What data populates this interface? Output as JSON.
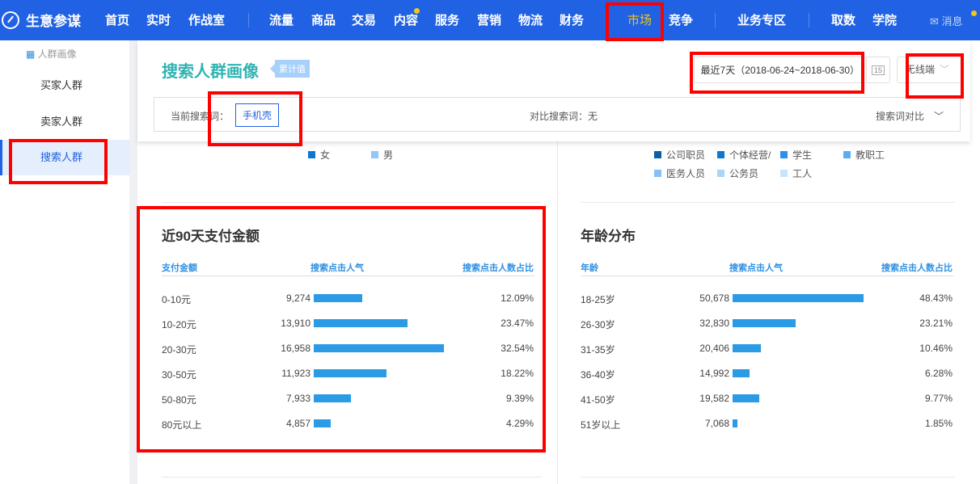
{
  "nav": {
    "brand": "生意参谋",
    "items": [
      "首页",
      "实时",
      "作战室",
      "流量",
      "商品",
      "交易",
      "内容",
      "服务",
      "营销",
      "物流",
      "财务",
      "市场",
      "竞争",
      "业务专区",
      "取数",
      "学院"
    ],
    "active": "市场",
    "message": "消息"
  },
  "sidebar": {
    "section": "人群画像",
    "items": [
      "买家人群",
      "卖家人群",
      "搜索人群"
    ],
    "active": "搜索人群"
  },
  "header": {
    "title": "搜索人群画像",
    "tag": "累计值",
    "date_range": "最近7天（2018-06-24~2018-06-30）",
    "calendar_day": "15",
    "device": "无线端"
  },
  "filter": {
    "current_label": "当前搜索词：",
    "keyword": "手机壳",
    "compare_label": "对比搜索词：无",
    "compare_button": "搜索词对比"
  },
  "gender_legend": [
    {
      "label": "女",
      "color": "#0a78d1"
    },
    {
      "label": "男",
      "color": "#8cc8f8"
    }
  ],
  "job_legend": [
    {
      "label": "公司职员",
      "color": "#0b5ea8"
    },
    {
      "label": "个体经营/",
      "color": "#0a78d1"
    },
    {
      "label": "学生",
      "color": "#2a8ff0"
    },
    {
      "label": "教职工",
      "color": "#5aabf2"
    },
    {
      "label": "医务人员",
      "color": "#84c2f5"
    },
    {
      "label": "公务员",
      "color": "#a8d6f8"
    },
    {
      "label": "工人",
      "color": "#c6e4fb"
    }
  ],
  "payment": {
    "title": "近90天支付金额",
    "headers": [
      "支付金额",
      "搜索点击人气",
      "搜索点击人数占比"
    ],
    "rows": [
      {
        "label": "0-10元",
        "value": "9,274",
        "share": "12.09%",
        "pct": 12.09
      },
      {
        "label": "10-20元",
        "value": "13,910",
        "share": "23.47%",
        "pct": 23.47
      },
      {
        "label": "20-30元",
        "value": "16,958",
        "share": "32.54%",
        "pct": 32.54
      },
      {
        "label": "30-50元",
        "value": "11,923",
        "share": "18.22%",
        "pct": 18.22
      },
      {
        "label": "50-80元",
        "value": "7,933",
        "share": "9.39%",
        "pct": 9.39
      },
      {
        "label": "80元以上",
        "value": "4,857",
        "share": "4.29%",
        "pct": 4.29
      }
    ]
  },
  "age": {
    "title": "年龄分布",
    "headers": [
      "年龄",
      "搜索点击人气",
      "搜索点击人数占比"
    ],
    "rows": [
      {
        "label": "18-25岁",
        "value": "50,678",
        "share": "48.43%",
        "pct": 48.43
      },
      {
        "label": "26-30岁",
        "value": "32,830",
        "share": "23.21%",
        "pct": 23.21
      },
      {
        "label": "31-35岁",
        "value": "20,406",
        "share": "10.46%",
        "pct": 10.46
      },
      {
        "label": "36-40岁",
        "value": "14,992",
        "share": "6.28%",
        "pct": 6.28
      },
      {
        "label": "41-50岁",
        "value": "19,582",
        "share": "9.77%",
        "pct": 9.77
      },
      {
        "label": "51岁以上",
        "value": "7,068",
        "share": "1.85%",
        "pct": 1.85
      }
    ]
  },
  "colors": {
    "nav": "#2062e3",
    "active_nav": "#f5c518",
    "bar": "#2c9be6",
    "title": "#2fb3b3",
    "highlight": "#ff0000"
  }
}
